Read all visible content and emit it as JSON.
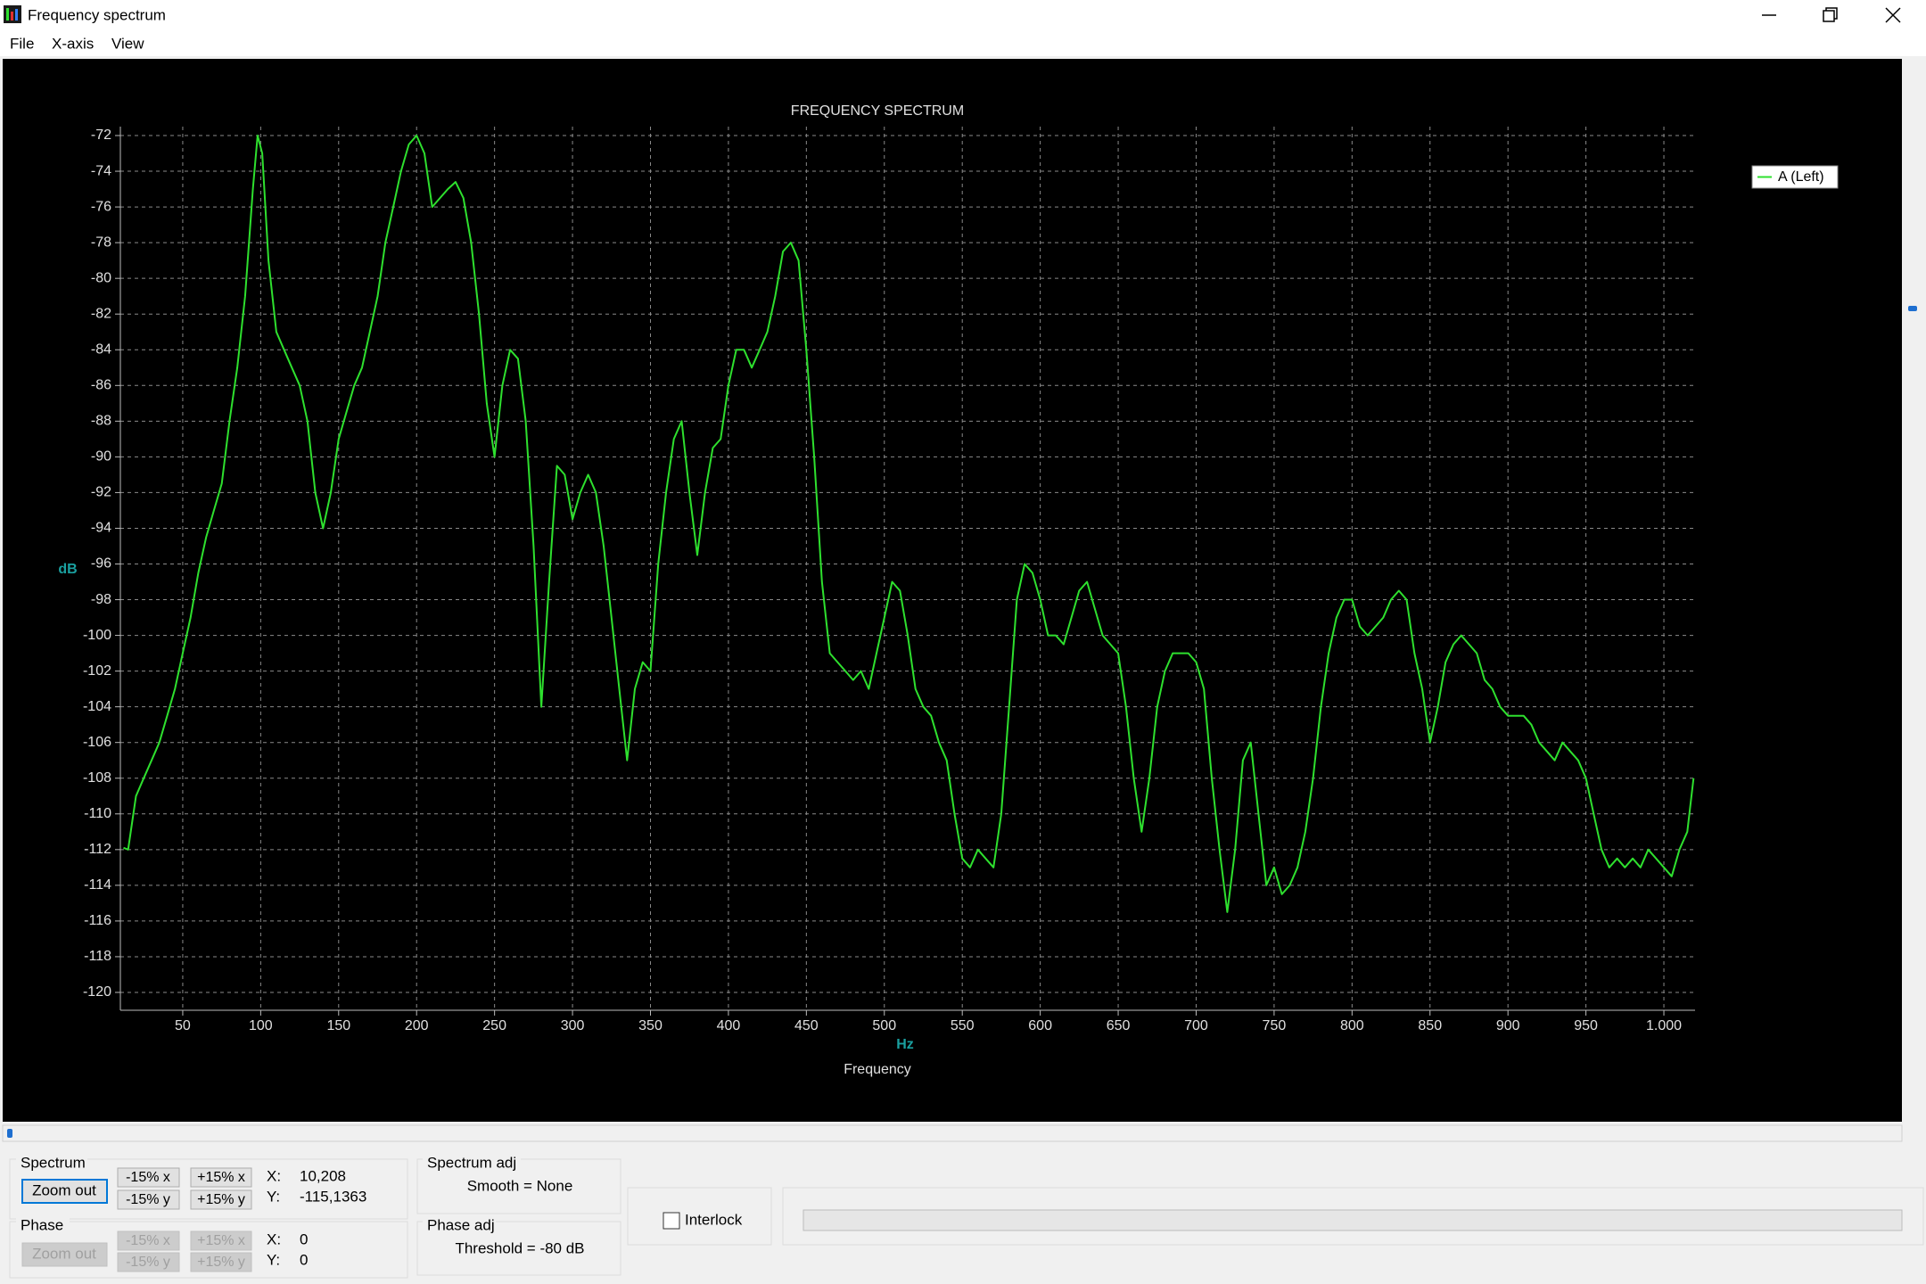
{
  "window": {
    "title": "Frequency spectrum"
  },
  "menu": [
    "File",
    "X-axis",
    "View"
  ],
  "chart_data": {
    "type": "line",
    "title": "FREQUENCY SPECTRUM",
    "x_label": "Frequency",
    "x_unit": "Hz",
    "y_unit": "dB",
    "xlim": [
      10,
      1020
    ],
    "ylim": [
      -121,
      -71.5
    ],
    "xticks": [
      50,
      100,
      150,
      200,
      250,
      300,
      350,
      400,
      450,
      500,
      550,
      600,
      650,
      700,
      750,
      800,
      850,
      900,
      950,
      {
        "value": 1000,
        "label": "1.000"
      }
    ],
    "yticks": [
      -72,
      -74,
      -76,
      -78,
      -80,
      -82,
      -84,
      -86,
      -88,
      -90,
      -92,
      -94,
      -96,
      -98,
      -100,
      -102,
      -104,
      -106,
      -108,
      -110,
      -112,
      -114,
      -116,
      -118,
      -120
    ],
    "grid": true,
    "legend": "upper right",
    "series": [
      {
        "name": "A (Left)",
        "color": "#2ee02e",
        "x": [
          12,
          15,
          20,
          25,
          30,
          35,
          40,
          45,
          50,
          55,
          60,
          65,
          70,
          75,
          80,
          85,
          90,
          95,
          98,
          101,
          105,
          110,
          115,
          120,
          125,
          130,
          135,
          140,
          145,
          150,
          155,
          160,
          165,
          170,
          175,
          180,
          185,
          190,
          195,
          200,
          205,
          210,
          215,
          220,
          225,
          230,
          235,
          240,
          245,
          250,
          255,
          260,
          265,
          270,
          275,
          280,
          285,
          290,
          295,
          300,
          305,
          310,
          315,
          320,
          325,
          330,
          335,
          340,
          345,
          350,
          355,
          360,
          365,
          370,
          375,
          380,
          385,
          390,
          395,
          400,
          405,
          410,
          415,
          420,
          425,
          430,
          435,
          440,
          445,
          450,
          455,
          460,
          465,
          470,
          475,
          480,
          485,
          490,
          495,
          500,
          505,
          510,
          515,
          520,
          525,
          530,
          535,
          540,
          545,
          550,
          555,
          560,
          565,
          570,
          575,
          580,
          585,
          590,
          595,
          600,
          605,
          610,
          615,
          620,
          625,
          630,
          635,
          640,
          645,
          650,
          655,
          660,
          665,
          670,
          675,
          680,
          685,
          690,
          695,
          700,
          705,
          710,
          715,
          720,
          725,
          730,
          735,
          740,
          745,
          750,
          755,
          760,
          765,
          770,
          775,
          780,
          785,
          790,
          795,
          800,
          805,
          810,
          815,
          820,
          825,
          830,
          835,
          840,
          845,
          850,
          855,
          860,
          865,
          870,
          875,
          880,
          885,
          890,
          895,
          900,
          905,
          910,
          915,
          920,
          925,
          930,
          935,
          940,
          945,
          950,
          955,
          960,
          965,
          970,
          975,
          980,
          985,
          990,
          995,
          1000,
          1005,
          1010,
          1015,
          1019
        ],
        "values": [
          -111.9,
          -112,
          -109,
          -108,
          -107,
          -106,
          -104.5,
          -103,
          -101,
          -99,
          -96.5,
          -94.5,
          -93,
          -91.5,
          -88,
          -85,
          -81,
          -75,
          -72,
          -73,
          -79,
          -83,
          -84,
          -85,
          -86,
          -88,
          -92,
          -94,
          -92,
          -89,
          -87.5,
          -86,
          -85,
          -83,
          -81,
          -78,
          -76,
          -74,
          -72.5,
          -72,
          -73,
          -76,
          -75.5,
          -75,
          -74.6,
          -75.5,
          -78,
          -82,
          -87,
          -90,
          -86,
          -84,
          -84.5,
          -88,
          -95,
          -104,
          -97,
          -90.5,
          -91,
          -93.5,
          -92,
          -91,
          -92,
          -95,
          -99,
          -103,
          -107,
          -103,
          -101.5,
          -102,
          -96,
          -92,
          -89,
          -88,
          -92,
          -95.5,
          -92,
          -89.5,
          -89,
          -86,
          -84,
          -84,
          -85,
          -84,
          -83,
          -81,
          -78.5,
          -78,
          -79,
          -84,
          -90,
          -97,
          -101,
          -101.5,
          -102,
          -102.5,
          -102,
          -103,
          -101,
          -99,
          -97,
          -97.5,
          -100,
          -103,
          -104,
          -104.5,
          -106,
          -107,
          -110,
          -112.5,
          -113,
          -112,
          -112.5,
          -113,
          -110,
          -104,
          -98,
          -96,
          -96.5,
          -98,
          -100,
          -100,
          -100.5,
          -99,
          -97.5,
          -97,
          -98.5,
          -100,
          -100.5,
          -101,
          -104,
          -108,
          -111,
          -108,
          -104,
          -102,
          -101,
          -101,
          -101,
          -101.5,
          -103,
          -108,
          -112,
          -115.5,
          -112,
          -107,
          -106,
          -110,
          -114,
          -113,
          -114.5,
          -114,
          -113,
          -111,
          -108,
          -104,
          -101,
          -99,
          -98,
          -98,
          -99.5,
          -100,
          -99.5,
          -99,
          -98,
          -97.5,
          -98,
          -101,
          -103,
          -106,
          -104,
          -101.5,
          -100.5,
          -100,
          -100.5,
          -101,
          -102.5,
          -103,
          -104,
          -104.5,
          -104.5,
          -104.5,
          -105,
          -106,
          -106.5,
          -107,
          -106,
          -106.5,
          -107,
          -108,
          -110,
          -112,
          -113,
          -112.5,
          -113,
          -112.5,
          -113,
          -112,
          -112.5,
          -113,
          -113.5,
          -112,
          -111,
          -108
        ]
      }
    ]
  },
  "controls": {
    "spectrum": {
      "label": "Spectrum",
      "zoom_out": "Zoom out",
      "buttons": [
        "-15% x",
        "+15% x",
        "-15% y",
        "+15% y"
      ],
      "x_label": "X:",
      "x_value": "10,208",
      "y_label": "Y:",
      "y_value": "-115,1363"
    },
    "phase": {
      "label": "Phase",
      "zoom_out": "Zoom out",
      "buttons": [
        "-15% x",
        "+15% x",
        "-15% y",
        "+15% y"
      ],
      "x_label": "X:",
      "x_value": "0",
      "y_label": "Y:",
      "y_value": "0"
    },
    "spectrum_adj": {
      "label": "Spectrum adj",
      "text": "Smooth = None"
    },
    "phase_adj": {
      "label": "Phase adj",
      "text": "Threshold = -80 dB"
    },
    "interlock": "Interlock"
  }
}
